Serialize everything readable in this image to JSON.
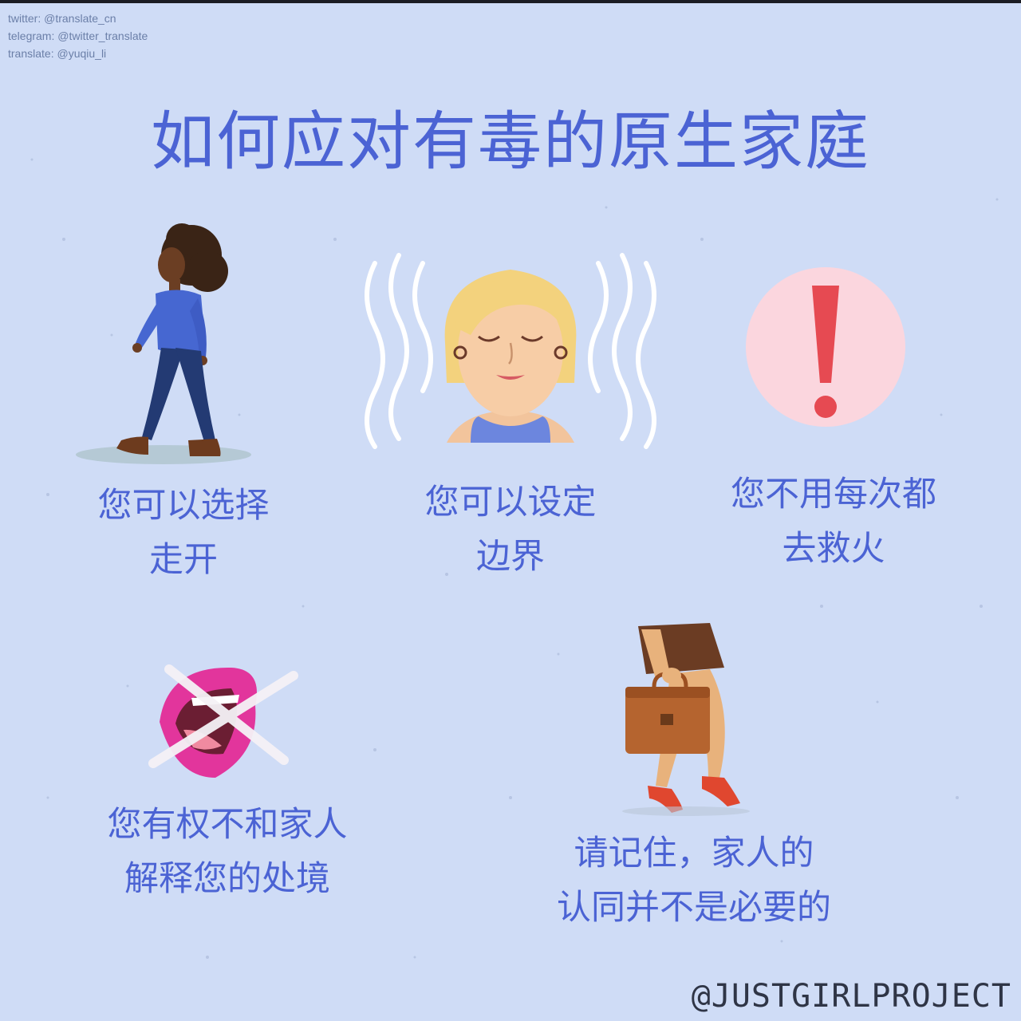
{
  "credits": {
    "twitter": "twitter: @translate_cn",
    "telegram": "telegram: @twitter_translate",
    "translate": "translate: @yuqiu_li"
  },
  "title": "如何应对有毒的原生家庭",
  "items": [
    {
      "line1": "您可以选择",
      "line2": "走开",
      "icon": "walking-woman-illustration"
    },
    {
      "line1": "您可以设定",
      "line2": "边界",
      "icon": "calm-woman-illustration"
    },
    {
      "line1": "您不用每次都",
      "line2": "去救火",
      "icon": "exclamation-icon"
    },
    {
      "line1": "您有权不和家人",
      "line2": "解释您的处境",
      "icon": "crossed-mouth-icon"
    },
    {
      "line1": "请记住，家人的",
      "line2": "认同并不是必要的",
      "icon": "woman-with-briefcase-illustration"
    }
  ],
  "watermark": "@JUSTGIRLPROJECT",
  "colors": {
    "background": "#cfdcf6",
    "text_blue": "#4b63d4",
    "alert_circle": "#fbd6de",
    "alert_red": "#e64a52",
    "lips": "#e2359c",
    "briefcase": "#b5642f"
  }
}
